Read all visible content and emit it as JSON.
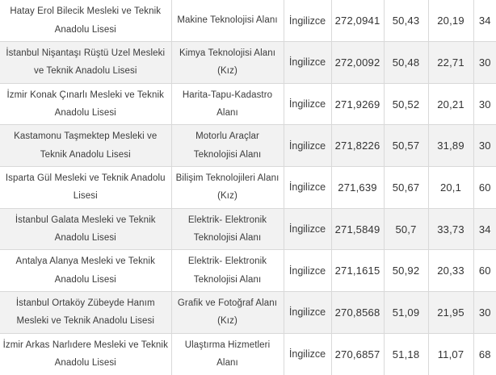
{
  "table": {
    "description": "School placement score table (cropped, no headers visible)",
    "colors": {
      "stripe": "#f2f2f2",
      "border": "#d9d9d9",
      "text": "#3b3b3b"
    },
    "rows": [
      {
        "school": "Hatay Erol Bilecik Mesleki ve Teknik Anadolu Lisesi",
        "field": "Makine Teknolojisi Alanı",
        "language": "İngilizce",
        "score": "272,0941",
        "value_a": "50,43",
        "value_b": "20,19",
        "value_c": "34"
      },
      {
        "school": "İstanbul Nişantaşı Rüştü Uzel Mesleki ve Teknik Anadolu Lisesi",
        "field": "Kimya Teknolojisi Alanı (Kız)",
        "language": "İngilizce",
        "score": "272,0092",
        "value_a": "50,48",
        "value_b": "22,71",
        "value_c": "30"
      },
      {
        "school": "İzmir Konak Çınarlı Mesleki ve Teknik Anadolu Lisesi",
        "field": "Harita-Tapu-Kadastro Alanı",
        "language": "İngilizce",
        "score": "271,9269",
        "value_a": "50,52",
        "value_b": "20,21",
        "value_c": "30"
      },
      {
        "school": "Kastamonu Taşmektep Mesleki ve Teknik Anadolu Lisesi",
        "field": "Motorlu Araçlar Teknolojisi Alanı",
        "language": "İngilizce",
        "score": "271,8226",
        "value_a": "50,57",
        "value_b": "31,89",
        "value_c": "30"
      },
      {
        "school": "Isparta Gül Mesleki ve Teknik Anadolu Lisesi",
        "field": "Bilişim Teknolojileri Alanı (Kız)",
        "language": "İngilizce",
        "score": "271,639",
        "value_a": "50,67",
        "value_b": "20,1",
        "value_c": "60"
      },
      {
        "school": "İstanbul Galata Mesleki ve Teknik Anadolu Lisesi",
        "field": "Elektrik- Elektronik Teknolojisi Alanı",
        "language": "İngilizce",
        "score": "271,5849",
        "value_a": "50,7",
        "value_b": "33,73",
        "value_c": "34"
      },
      {
        "school": "Antalya Alanya Mesleki ve Teknik Anadolu Lisesi",
        "field": "Elektrik- Elektronik Teknolojisi Alanı",
        "language": "İngilizce",
        "score": "271,1615",
        "value_a": "50,92",
        "value_b": "20,33",
        "value_c": "60"
      },
      {
        "school": "İstanbul Ortaköy Zübeyde Hanım Mesleki ve Teknik Anadolu Lisesi",
        "field": "Grafik ve Fotoğraf Alanı (Kız)",
        "language": "İngilizce",
        "score": "270,8568",
        "value_a": "51,09",
        "value_b": "21,95",
        "value_c": "30"
      },
      {
        "school": "İzmir Arkas Narlıdere Mesleki ve Teknik Anadolu Lisesi",
        "field": "Ulaştırma Hizmetleri Alanı",
        "language": "İngilizce",
        "score": "270,6857",
        "value_a": "51,18",
        "value_b": "11,07",
        "value_c": "68"
      }
    ]
  }
}
